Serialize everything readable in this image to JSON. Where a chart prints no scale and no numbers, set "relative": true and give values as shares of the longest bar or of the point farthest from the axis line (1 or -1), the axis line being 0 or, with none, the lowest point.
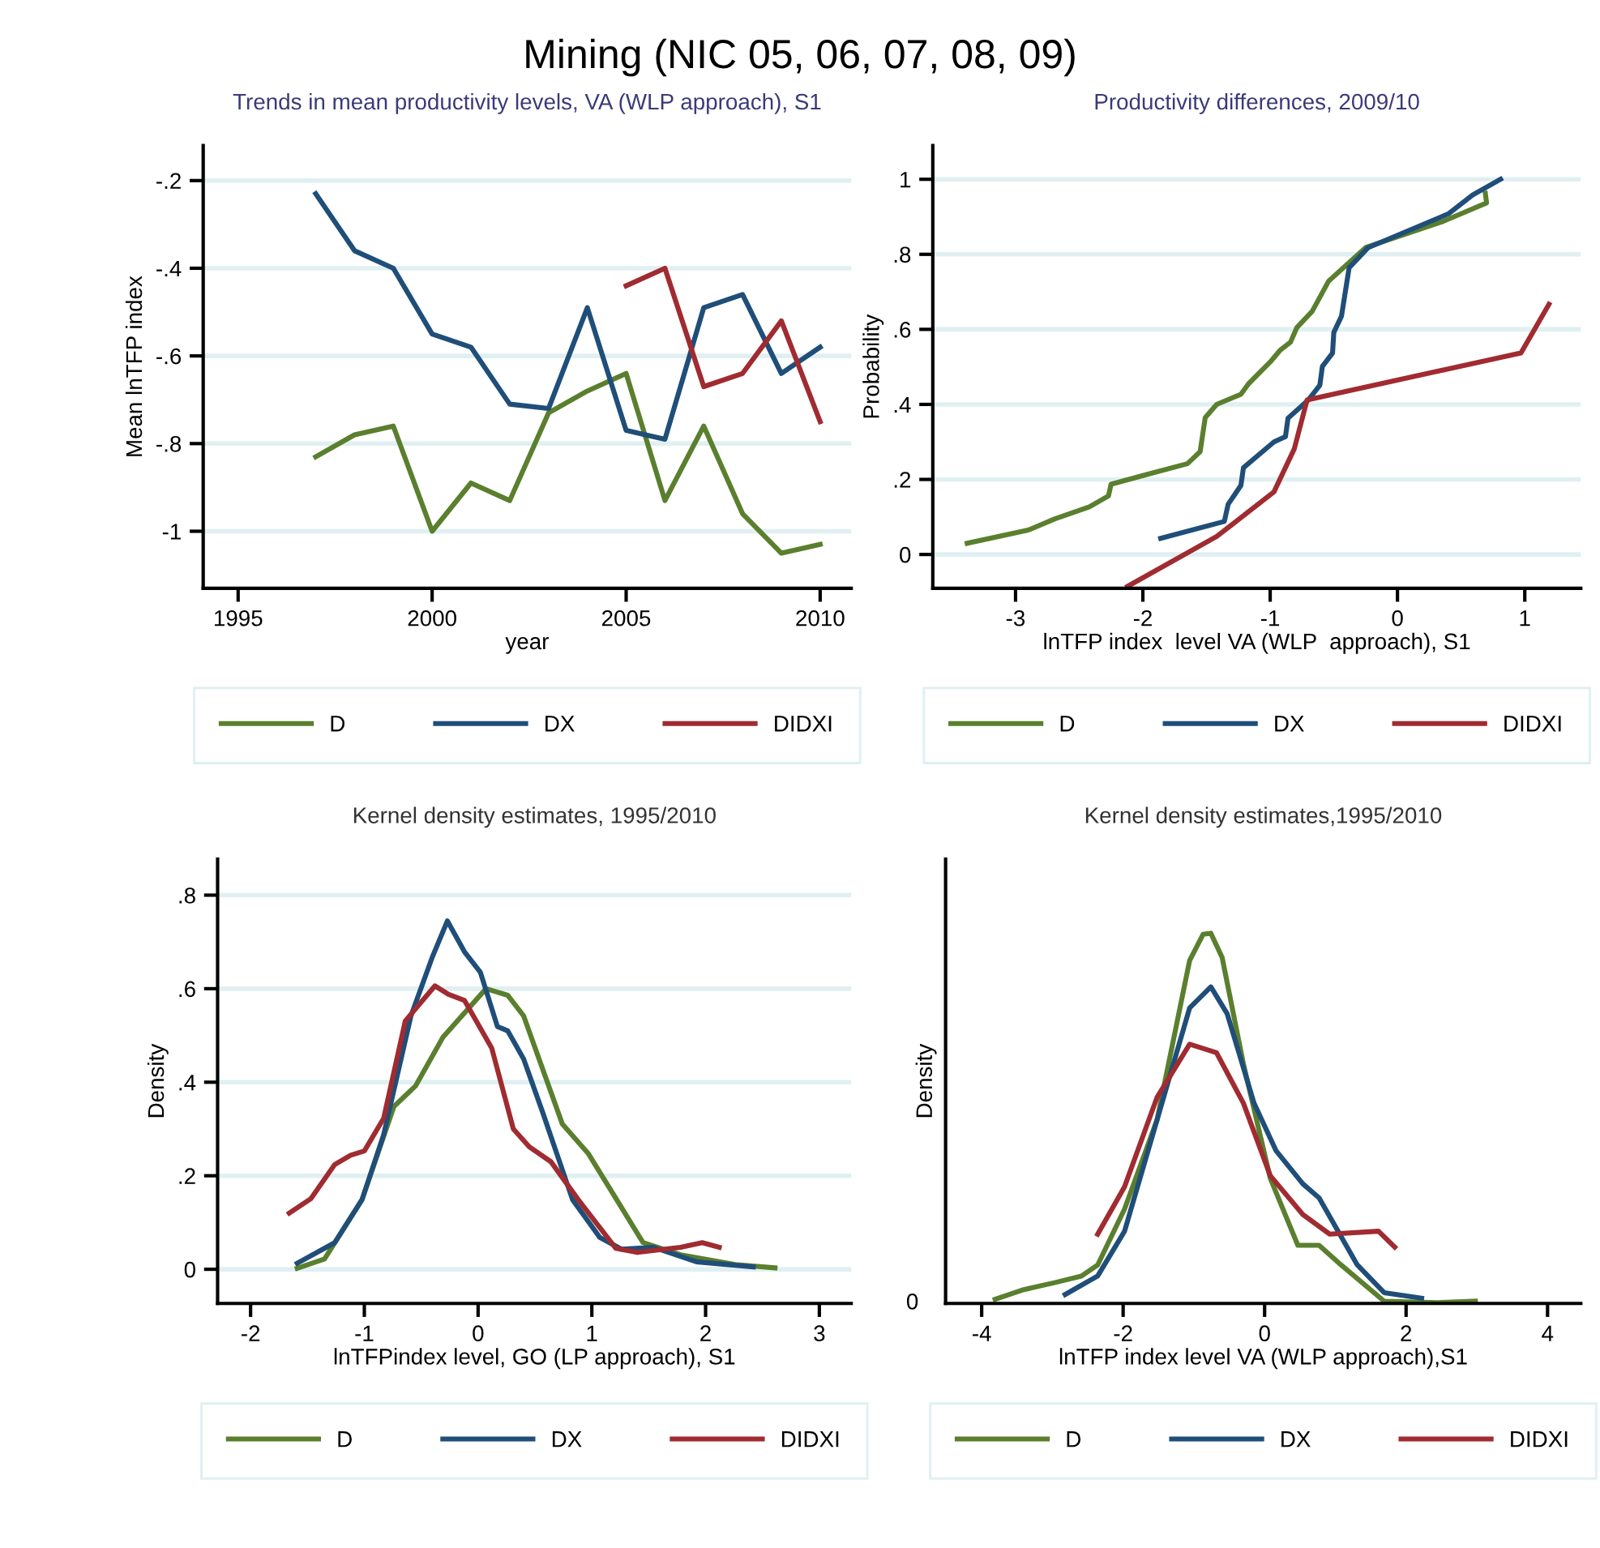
{
  "chart_data": [
    {
      "type": "line",
      "title": "Trends in mean productivity levels, VA (WLP approach), S1",
      "xlabel": "year",
      "ylabel": "Mean lnTFP index",
      "annotations": [
        "Mining (NIC 05, 06, 07, 08, 09)"
      ],
      "grid": "y",
      "legend": "bottom",
      "xlim": [
        1994.1,
        2010.8
      ],
      "xticks": [
        1995,
        2000,
        2005,
        2010
      ],
      "ylim": [
        -1.13,
        -0.12
      ],
      "yticks": [
        {
          "value": -1,
          "label": "-1"
        },
        {
          "value": -0.8,
          "label": "-.8"
        },
        {
          "value": -0.6,
          "label": "-.6"
        },
        {
          "value": -0.4,
          "label": "-.4"
        },
        {
          "value": -0.2,
          "label": "-.2"
        }
      ],
      "series": [
        {
          "name": "D",
          "color": "#5a7f2e",
          "x": [
            1997,
            1998,
            1999,
            2000,
            2001,
            2002,
            2003,
            2004,
            2005,
            2006,
            2007,
            2008,
            2009,
            2010
          ],
          "values": [
            -0.83,
            -0.78,
            -0.76,
            -1.0,
            -0.89,
            -0.93,
            -0.73,
            -0.68,
            -0.64,
            -0.93,
            -0.76,
            -0.96,
            -1.05,
            -1.03
          ]
        },
        {
          "name": "DX",
          "color": "#1f4e79",
          "x": [
            1997,
            1998,
            1999,
            2000,
            2001,
            2002,
            2003,
            2004,
            2005,
            2006,
            2007,
            2008,
            2009,
            2010
          ],
          "values": [
            -0.23,
            -0.36,
            -0.4,
            -0.55,
            -0.58,
            -0.71,
            -0.72,
            -0.49,
            -0.77,
            -0.79,
            -0.49,
            -0.46,
            -0.64,
            -0.58
          ]
        },
        {
          "name": "DIDXI",
          "color": "#a02b30",
          "x": [
            2005,
            2006,
            2007,
            2008,
            2009,
            2010
          ],
          "values": [
            -0.44,
            -0.4,
            -0.67,
            -0.64,
            -0.52,
            -0.75
          ]
        }
      ]
    },
    {
      "type": "line",
      "title": "Productivity differences, 2009/10",
      "xlabel": "lnTFP index  level VA (WLP  approach), S1",
      "ylabel": "Probability",
      "grid": "y",
      "legend": "bottom",
      "xlim": [
        -3.65,
        1.44
      ],
      "xticks": [
        -3,
        -2,
        -1,
        0,
        1
      ],
      "ylim": [
        -0.09,
        1.09
      ],
      "yticks": [
        0,
        {
          "value": 0.2,
          "label": ".2"
        },
        {
          "value": 0.4,
          "label": ".4"
        },
        {
          "value": 0.6,
          "label": ".6"
        },
        {
          "value": 0.8,
          "label": ".8"
        },
        1
      ],
      "series": [
        {
          "name": "D",
          "color": "#5a7f2e",
          "x": [
            -3.38,
            -2.9,
            -2.69,
            -2.42,
            -2.27,
            -2.25,
            -1.97,
            -1.65,
            -1.55,
            -1.51,
            -1.42,
            -1.23,
            -1.17,
            -1.0,
            -0.92,
            -0.84,
            -0.79,
            -0.67,
            -0.54,
            -0.25,
            0.36,
            0.7,
            0.69
          ],
          "values": [
            0.03,
            0.065,
            0.095,
            0.127,
            0.156,
            0.187,
            0.213,
            0.242,
            0.274,
            0.365,
            0.4,
            0.427,
            0.455,
            0.513,
            0.545,
            0.566,
            0.605,
            0.648,
            0.729,
            0.818,
            0.888,
            0.937,
            0.963
          ]
        },
        {
          "name": "DX",
          "color": "#1f4e79",
          "x": [
            -1.86,
            -1.36,
            -1.33,
            -1.23,
            -1.21,
            -0.97,
            -0.88,
            -0.86,
            -0.7,
            -0.61,
            -0.59,
            -0.51,
            -0.5,
            -0.44,
            -0.38,
            -0.23,
            0.4,
            0.59,
            0.81
          ],
          "values": [
            0.043,
            0.088,
            0.134,
            0.184,
            0.231,
            0.3,
            0.314,
            0.363,
            0.412,
            0.451,
            0.501,
            0.537,
            0.592,
            0.635,
            0.764,
            0.818,
            0.908,
            0.958,
            1.0
          ]
        },
        {
          "name": "DIDXI",
          "color": "#a02b30",
          "x": [
            -2.12,
            -1.42,
            -0.97,
            -0.81,
            -0.71,
            0.97,
            1.19
          ],
          "values": [
            -0.085,
            0.048,
            0.167,
            0.282,
            0.412,
            0.537,
            0.667
          ]
        }
      ]
    },
    {
      "type": "line",
      "title": "Kernel density estimates, 1995/2010",
      "xlabel": "lnTFPindex level, GO (LP approach), S1",
      "ylabel": "Density",
      "grid": "y",
      "legend": "bottom",
      "xlim": [
        -2.29,
        3.28
      ],
      "xticks": [
        -2,
        -1,
        0,
        1,
        2,
        3
      ],
      "ylim": [
        -0.073,
        0.877
      ],
      "yticks": [
        0,
        {
          "value": 0.2,
          "label": ".2"
        },
        {
          "value": 0.4,
          "label": ".4"
        },
        {
          "value": 0.6,
          "label": ".6"
        },
        {
          "value": 0.8,
          "label": ".8"
        }
      ],
      "series": [
        {
          "name": "D",
          "color": "#5a7f2e",
          "x": [
            -1.59,
            -1.35,
            -1.02,
            -0.74,
            -0.55,
            -0.31,
            0.07,
            0.26,
            0.4,
            0.74,
            0.97,
            1.45,
            1.78,
            2.26,
            2.61
          ],
          "values": [
            0.002,
            0.022,
            0.149,
            0.348,
            0.392,
            0.496,
            0.6,
            0.586,
            0.542,
            0.311,
            0.247,
            0.057,
            0.031,
            0.01,
            0.003
          ]
        },
        {
          "name": "DX",
          "color": "#1f4e79",
          "x": [
            -1.59,
            -1.26,
            -1.02,
            -0.83,
            -0.59,
            -0.4,
            -0.27,
            -0.12,
            0.02,
            0.17,
            0.26,
            0.4,
            0.57,
            0.83,
            1.07,
            1.26,
            1.54,
            1.92,
            2.42
          ],
          "values": [
            0.013,
            0.057,
            0.149,
            0.288,
            0.542,
            0.669,
            0.745,
            0.679,
            0.635,
            0.519,
            0.51,
            0.45,
            0.334,
            0.149,
            0.068,
            0.043,
            0.047,
            0.016,
            0.005
          ]
        },
        {
          "name": "DIDXI",
          "color": "#a02b30",
          "x": [
            -1.66,
            -1.47,
            -1.26,
            -1.12,
            -1.0,
            -0.83,
            -0.64,
            -0.38,
            -0.26,
            -0.12,
            0.12,
            0.31,
            0.45,
            0.64,
            0.88,
            1.21,
            1.4,
            1.78,
            1.97,
            2.12
          ],
          "values": [
            0.12,
            0.151,
            0.224,
            0.244,
            0.253,
            0.323,
            0.531,
            0.606,
            0.588,
            0.575,
            0.473,
            0.3,
            0.262,
            0.23,
            0.149,
            0.045,
            0.036,
            0.047,
            0.057,
            0.047
          ]
        }
      ]
    },
    {
      "type": "line",
      "title": "Kernel density estimates,1995/2010",
      "xlabel": "lnTFP index level VA (WLP approach),S1",
      "ylabel": "Density",
      "relative": true,
      "legend": "bottom",
      "annotations": [
        "0"
      ],
      "xlim": [
        -4.51,
        4.47
      ],
      "xticks": [
        -4,
        -2,
        0,
        2,
        4
      ],
      "series": [
        {
          "name": "D",
          "color": "#5a7f2e",
          "x": [
            -3.81,
            -3.43,
            -2.97,
            -2.59,
            -2.36,
            -1.98,
            -1.52,
            -1.06,
            -0.87,
            -0.76,
            -0.6,
            -0.3,
            0.08,
            0.47,
            0.77,
            1.08,
            1.69,
            2.45,
            2.98
          ],
          "values": [
            0.011,
            0.036,
            0.056,
            0.074,
            0.104,
            0.255,
            0.496,
            0.926,
            0.997,
            1.0,
            0.934,
            0.647,
            0.338,
            0.157,
            0.157,
            0.104,
            0.006,
            0.002,
            0.006
          ]
        },
        {
          "name": "DX",
          "color": "#1f4e79",
          "x": [
            -2.82,
            -2.36,
            -1.98,
            -1.52,
            -1.06,
            -0.76,
            -0.53,
            -0.15,
            0.16,
            0.54,
            0.77,
            1.31,
            1.69,
            2.22
          ],
          "values": [
            0.024,
            0.074,
            0.195,
            0.496,
            0.798,
            0.855,
            0.783,
            0.541,
            0.413,
            0.323,
            0.285,
            0.104,
            0.029,
            0.014
          ]
        },
        {
          "name": "DIDXI",
          "color": "#a02b30",
          "x": [
            -2.36,
            -1.98,
            -1.52,
            -1.06,
            -0.68,
            -0.3,
            0.08,
            0.54,
            0.92,
            1.61,
            1.84
          ],
          "values": [
            0.187,
            0.315,
            0.557,
            0.7,
            0.677,
            0.541,
            0.345,
            0.24,
            0.187,
            0.195,
            0.152
          ]
        }
      ]
    }
  ]
}
